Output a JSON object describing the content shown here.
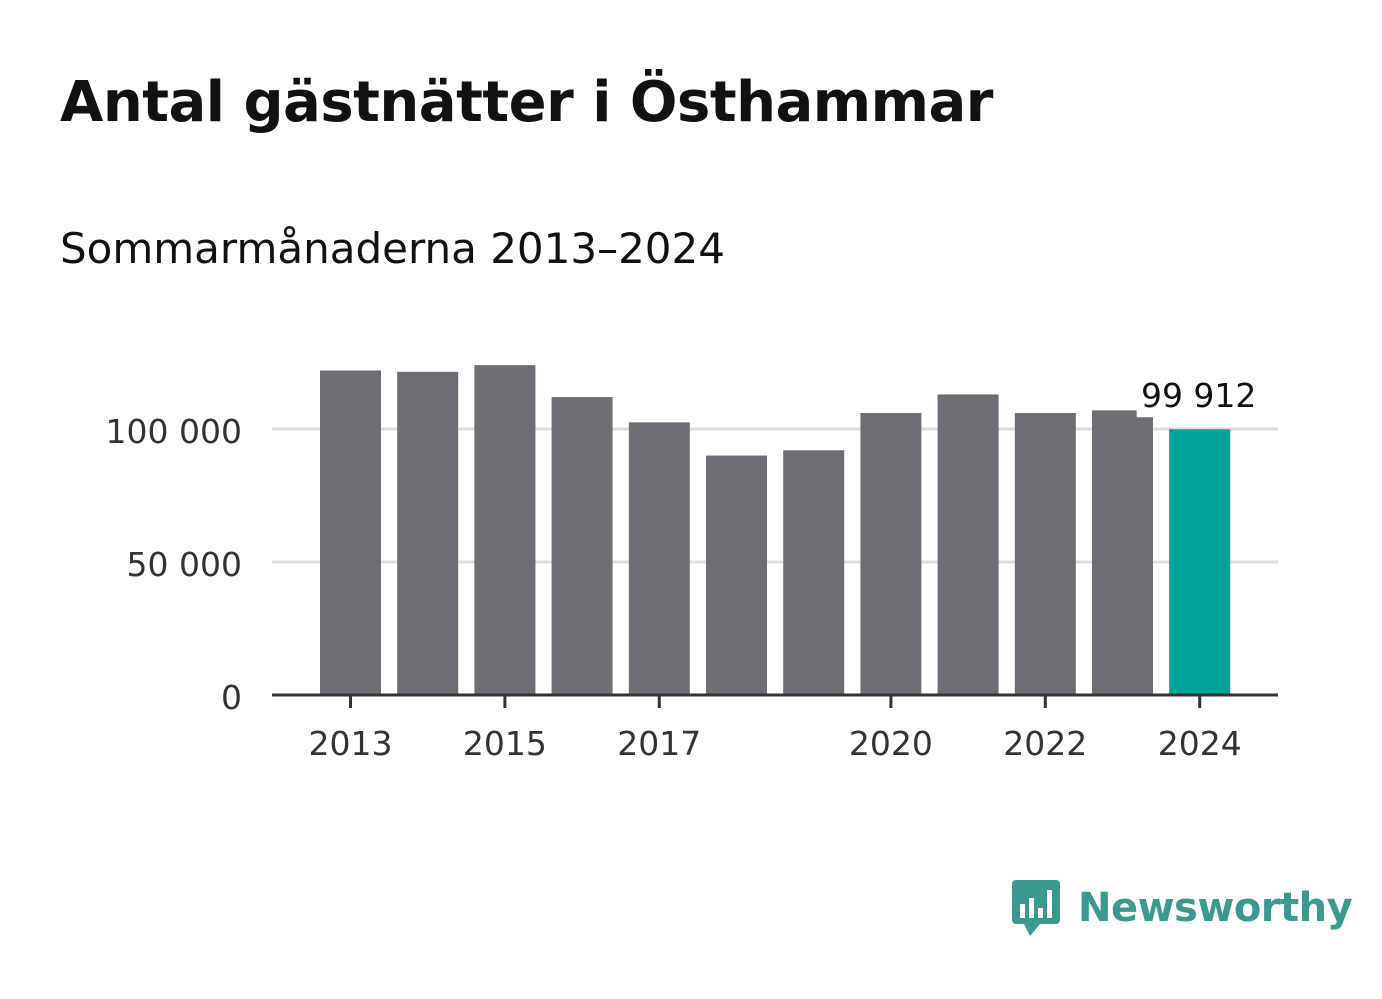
{
  "title": "Antal gästnätter i Östhammar",
  "subtitle": "Sommarmånaderna 2013–2024",
  "brand": {
    "name": "Newsworthy",
    "icon": "newsworthy-logo-icon",
    "color": "#3a9a8f"
  },
  "chart_data": {
    "type": "bar",
    "categories": [
      "2013",
      "2014",
      "2015",
      "2016",
      "2017",
      "2018",
      "2019",
      "2020",
      "2021",
      "2022",
      "2023",
      "2024"
    ],
    "values": [
      122000,
      121500,
      124000,
      112000,
      102500,
      90000,
      92000,
      106000,
      113000,
      106000,
      107000,
      99912
    ],
    "x_tick_labels": [
      "2013",
      "2015",
      "2017",
      "2020",
      "2022",
      "2024"
    ],
    "y_ticks": [
      0,
      50000,
      100000
    ],
    "y_tick_labels": [
      "0",
      "50 000",
      "100 000"
    ],
    "ylim": [
      0,
      130000
    ],
    "grid": true,
    "highlight": {
      "category": "2024",
      "label": "99 912"
    },
    "colors": {
      "bar": "#6e6d73",
      "highlight": "#00a398",
      "grid": "#dddddd",
      "axis": "#333333"
    }
  }
}
